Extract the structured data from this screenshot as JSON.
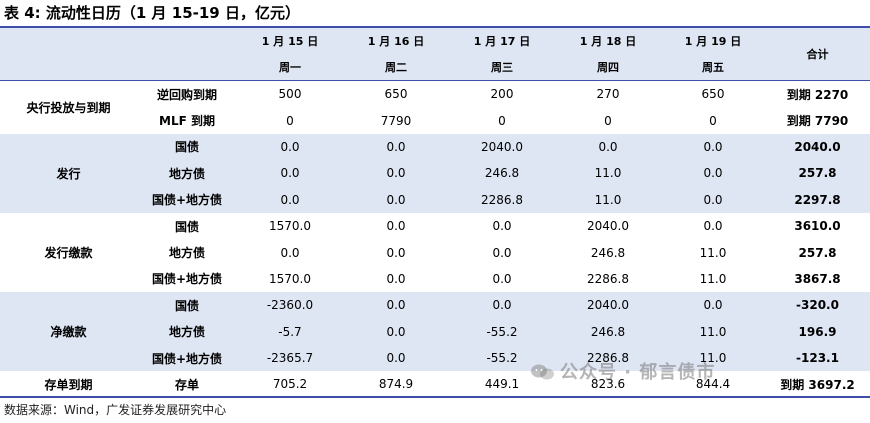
{
  "caption": "表 4:  流动性日历（1 月 15-19 日，亿元）",
  "header": {
    "dates": [
      "1 月 15 日",
      "1 月 16 日",
      "1 月 17 日",
      "1 月 18 日",
      "1 月 19 日"
    ],
    "weekdays": [
      "周一",
      "周二",
      "周三",
      "周四",
      "周五"
    ],
    "total_label": "合计"
  },
  "groups": [
    {
      "label": "央行投放与到期",
      "rows": [
        {
          "label": "逆回购到期",
          "values": [
            "500",
            "650",
            "200",
            "270",
            "650"
          ],
          "total": "到期 2270"
        },
        {
          "label": "MLF 到期",
          "values": [
            "0",
            "7790",
            "0",
            "0",
            "0"
          ],
          "total": "到期 7790"
        }
      ]
    },
    {
      "label": "发行",
      "rows": [
        {
          "label": "国债",
          "values": [
            "0.0",
            "0.0",
            "2040.0",
            "0.0",
            "0.0"
          ],
          "total": "2040.0"
        },
        {
          "label": "地方债",
          "values": [
            "0.0",
            "0.0",
            "246.8",
            "11.0",
            "0.0"
          ],
          "total": "257.8"
        },
        {
          "label": "国债+地方债",
          "values": [
            "0.0",
            "0.0",
            "2286.8",
            "11.0",
            "0.0"
          ],
          "total": "2297.8"
        }
      ]
    },
    {
      "label": "发行缴款",
      "rows": [
        {
          "label": "国债",
          "values": [
            "1570.0",
            "0.0",
            "0.0",
            "2040.0",
            "0.0"
          ],
          "total": "3610.0"
        },
        {
          "label": "地方债",
          "values": [
            "0.0",
            "0.0",
            "0.0",
            "246.8",
            "11.0"
          ],
          "total": "257.8"
        },
        {
          "label": "国债+地方债",
          "values": [
            "1570.0",
            "0.0",
            "0.0",
            "2286.8",
            "11.0"
          ],
          "total": "3867.8"
        }
      ]
    },
    {
      "label": "净缴款",
      "rows": [
        {
          "label": "国债",
          "values": [
            "-2360.0",
            "0.0",
            "0.0",
            "2040.0",
            "0.0"
          ],
          "total": "-320.0"
        },
        {
          "label": "地方债",
          "values": [
            "-5.7",
            "0.0",
            "-55.2",
            "246.8",
            "11.0"
          ],
          "total": "196.9"
        },
        {
          "label": "国债+地方债",
          "values": [
            "-2365.7",
            "0.0",
            "-55.2",
            "2286.8",
            "11.0"
          ],
          "total": "-123.1"
        }
      ]
    },
    {
      "label": "存单到期",
      "rows": [
        {
          "label": "存单",
          "values": [
            "705.2",
            "874.9",
            "449.1",
            "823.6",
            "844.4"
          ],
          "total": "到期 3697.2"
        }
      ]
    }
  ],
  "source": "数据来源：Wind，广发证券发展研究中心",
  "watermark": "公众号 · 郁言债市"
}
